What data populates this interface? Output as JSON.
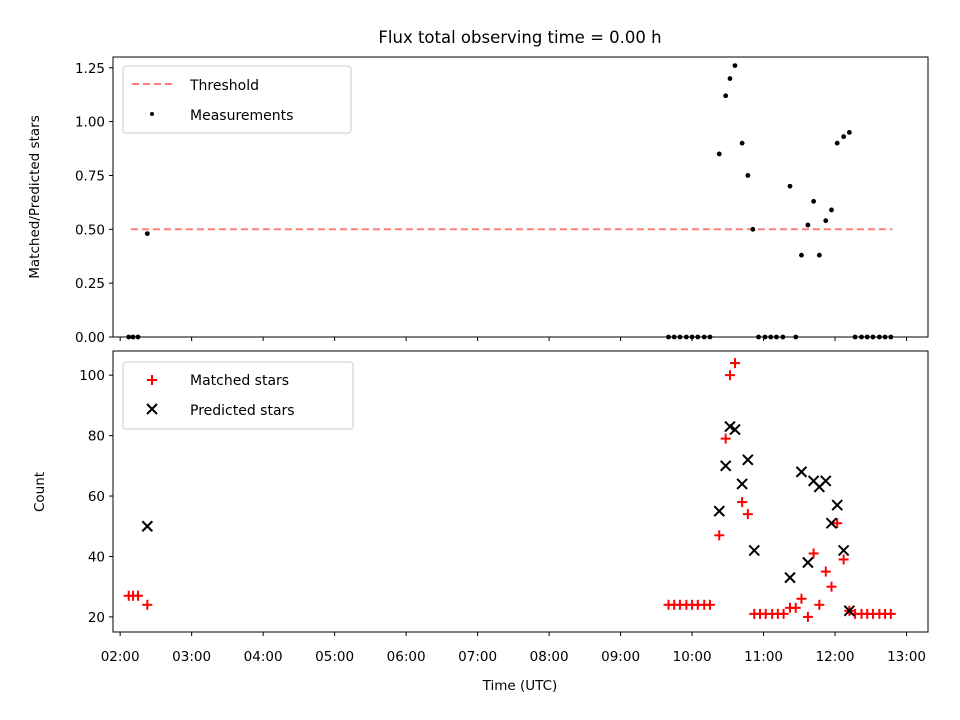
{
  "chart_data": [
    {
      "type": "scatter",
      "title": "Flux total observing time = 0.00 h",
      "ylabel": "Matched/Predicted stars",
      "xlabel": "",
      "xlim": [
        1.9,
        13.3
      ],
      "ylim": [
        0,
        1.3
      ],
      "y_ticks": [
        0.0,
        0.25,
        0.5,
        0.75,
        1.0,
        1.25
      ],
      "y_tick_labels": [
        "0.00",
        "0.25",
        "0.50",
        "0.75",
        "1.00",
        "1.25"
      ],
      "x_ticks_minor_count": 12,
      "legend": "top-left",
      "threshold": {
        "name": "Threshold",
        "value": 0.5,
        "x_range": [
          2.15,
          12.8
        ],
        "color": "#ff7f7f",
        "style": "dashed"
      },
      "series": [
        {
          "name": "Measurements",
          "color": "#000000",
          "marker": "dot",
          "points": [
            [
              2.12,
              0.0
            ],
            [
              2.18,
              0.0
            ],
            [
              2.25,
              0.0
            ],
            [
              2.38,
              0.48
            ],
            [
              9.67,
              0.0
            ],
            [
              9.75,
              0.0
            ],
            [
              9.83,
              0.0
            ],
            [
              9.92,
              0.0
            ],
            [
              10.0,
              0.0
            ],
            [
              10.08,
              0.0
            ],
            [
              10.17,
              0.0
            ],
            [
              10.25,
              0.0
            ],
            [
              10.38,
              0.85
            ],
            [
              10.47,
              1.12
            ],
            [
              10.53,
              1.2
            ],
            [
              10.6,
              1.26
            ],
            [
              10.7,
              0.9
            ],
            [
              10.78,
              0.75
            ],
            [
              10.85,
              0.5
            ],
            [
              10.93,
              0.0
            ],
            [
              11.02,
              0.0
            ],
            [
              11.1,
              0.0
            ],
            [
              11.18,
              0.0
            ],
            [
              11.27,
              0.0
            ],
            [
              11.37,
              0.7
            ],
            [
              11.45,
              0.0
            ],
            [
              11.53,
              0.38
            ],
            [
              11.62,
              0.52
            ],
            [
              11.7,
              0.63
            ],
            [
              11.78,
              0.38
            ],
            [
              11.87,
              0.54
            ],
            [
              11.95,
              0.59
            ],
            [
              12.03,
              0.9
            ],
            [
              12.12,
              0.93
            ],
            [
              12.2,
              0.95
            ],
            [
              12.28,
              0.0
            ],
            [
              12.37,
              0.0
            ],
            [
              12.45,
              0.0
            ],
            [
              12.53,
              0.0
            ],
            [
              12.62,
              0.0
            ],
            [
              12.7,
              0.0
            ],
            [
              12.78,
              0.0
            ]
          ]
        }
      ]
    },
    {
      "type": "scatter",
      "title": "",
      "ylabel": "Count",
      "xlabel": "Time (UTC)",
      "xlim": [
        1.9,
        13.3
      ],
      "ylim": [
        15,
        108
      ],
      "y_ticks": [
        20,
        40,
        60,
        80,
        100
      ],
      "y_tick_labels": [
        "20",
        "40",
        "60",
        "80",
        "100"
      ],
      "x_ticks": [
        2,
        3,
        4,
        5,
        6,
        7,
        8,
        9,
        10,
        11,
        12,
        13
      ],
      "x_tick_labels": [
        "02:00",
        "03:00",
        "04:00",
        "05:00",
        "06:00",
        "07:00",
        "08:00",
        "09:00",
        "10:00",
        "11:00",
        "12:00",
        "13:00"
      ],
      "legend": "top-left",
      "series": [
        {
          "name": "Matched stars",
          "color": "#ff0000",
          "marker": "plus",
          "points": [
            [
              2.12,
              27
            ],
            [
              2.18,
              27
            ],
            [
              2.25,
              27
            ],
            [
              2.38,
              24
            ],
            [
              9.67,
              24
            ],
            [
              9.75,
              24
            ],
            [
              9.83,
              24
            ],
            [
              9.92,
              24
            ],
            [
              10.0,
              24
            ],
            [
              10.08,
              24
            ],
            [
              10.17,
              24
            ],
            [
              10.25,
              24
            ],
            [
              10.38,
              47
            ],
            [
              10.47,
              79
            ],
            [
              10.53,
              100
            ],
            [
              10.6,
              104
            ],
            [
              10.7,
              58
            ],
            [
              10.78,
              54
            ],
            [
              10.87,
              21
            ],
            [
              10.95,
              21
            ],
            [
              11.03,
              21
            ],
            [
              11.12,
              21
            ],
            [
              11.2,
              21
            ],
            [
              11.28,
              21
            ],
            [
              11.37,
              23
            ],
            [
              11.45,
              23
            ],
            [
              11.53,
              26
            ],
            [
              11.62,
              20
            ],
            [
              11.7,
              41
            ],
            [
              11.78,
              24
            ],
            [
              11.87,
              35
            ],
            [
              11.95,
              30
            ],
            [
              12.03,
              51
            ],
            [
              12.12,
              39
            ],
            [
              12.2,
              22
            ],
            [
              12.28,
              21
            ],
            [
              12.37,
              21
            ],
            [
              12.45,
              21
            ],
            [
              12.53,
              21
            ],
            [
              12.62,
              21
            ],
            [
              12.7,
              21
            ],
            [
              12.78,
              21
            ]
          ]
        },
        {
          "name": "Predicted stars",
          "color": "#000000",
          "marker": "x",
          "points": [
            [
              2.38,
              50
            ],
            [
              10.38,
              55
            ],
            [
              10.47,
              70
            ],
            [
              10.53,
              83
            ],
            [
              10.6,
              82
            ],
            [
              10.7,
              64
            ],
            [
              10.78,
              72
            ],
            [
              10.87,
              42
            ],
            [
              11.37,
              33
            ],
            [
              11.53,
              68
            ],
            [
              11.62,
              38
            ],
            [
              11.7,
              65
            ],
            [
              11.78,
              63
            ],
            [
              11.87,
              65
            ],
            [
              11.95,
              51
            ],
            [
              12.03,
              57
            ],
            [
              12.12,
              42
            ],
            [
              12.2,
              22
            ]
          ]
        }
      ]
    }
  ]
}
